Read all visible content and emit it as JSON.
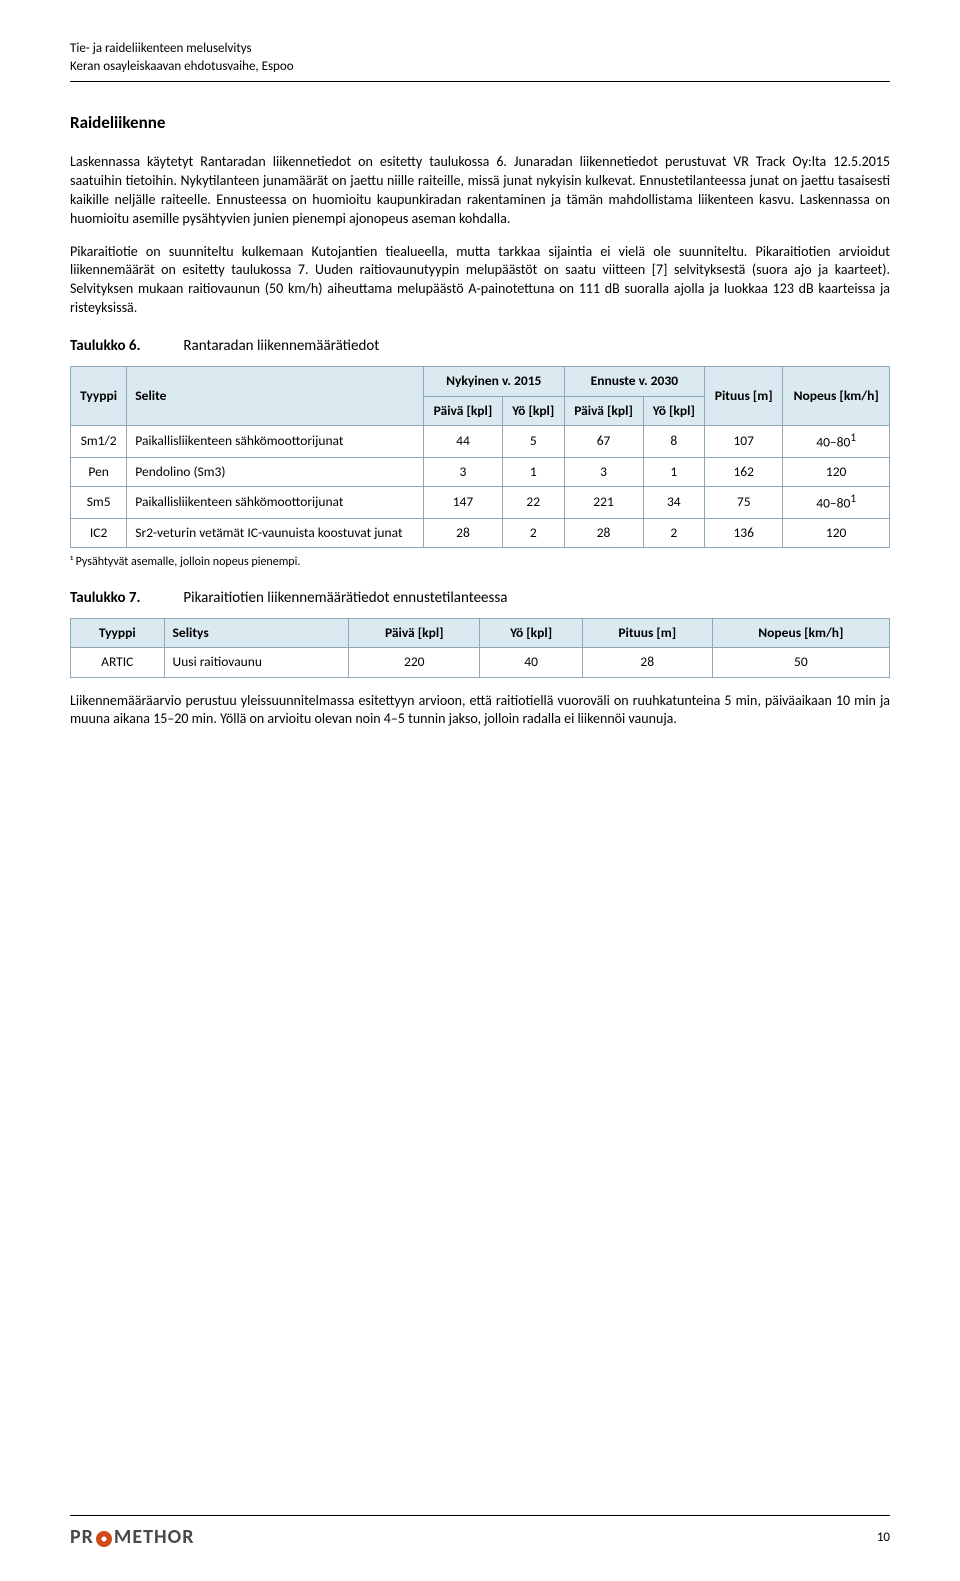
{
  "header": {
    "line1": "Tie- ja raideliikenteen meluselvitys",
    "line2": "Keran osayleiskaavan ehdotusvaihe, Espoo"
  },
  "section_title": "Raideliikenne",
  "paragraphs": {
    "p1": "Laskennassa käytetyt Rantaradan liikennetiedot on esitetty taulukossa 6. Junaradan liikennetiedot perustuvat VR Track Oy:lta 12.5.2015 saatuihin tietoihin. Nykytilanteen junamäärät on jaettu niille raiteille, missä junat nykyisin kulkevat. Ennustetilanteessa junat on jaettu tasaisesti kaikille neljälle raiteelle. Ennusteessa on huomioitu kaupunkiradan rakentaminen ja tämän mahdollistama liikenteen kasvu. Laskennassa on huomioitu asemille pysähtyvien junien pienempi ajonopeus aseman kohdalla.",
    "p2": "Pikaraitiotie on suunniteltu kulkemaan Kutojantien tiealueella, mutta tarkkaa sijaintia ei vielä ole suunniteltu. Pikaraitiotien arvioidut liikennemäärät on esitetty taulukossa 7. Uuden raitiovaunutyypin melupäästöt on saatu viitteen [7] selvityksestä (suora ajo ja kaarteet). Selvityksen mukaan raitiovaunun (50 km/h) aiheuttama melupäästö A-painotettuna on 111 dB suoralla ajolla ja luokkaa 123 dB kaarteissa ja risteyksissä."
  },
  "table6": {
    "caption_label": "Taulukko 6.",
    "caption_text": "Rantaradan liikennemäärätiedot",
    "headers": {
      "tyyppi": "Tyyppi",
      "selite": "Selite",
      "nykyinen": "Nykyinen v. 2015",
      "ennuste": "Ennuste v. 2030",
      "pituus": "Pituus [m]",
      "nopeus": "Nopeus [km/h]",
      "paiva": "Päivä [kpl]",
      "yo": "Yö [kpl]"
    },
    "rows": [
      {
        "tyyppi": "Sm1/2",
        "selite": "Paikallisliikenteen sähkömoottorijunat",
        "p1": "44",
        "y1": "5",
        "p2": "67",
        "y2": "8",
        "pit": "107",
        "nop": "40–80",
        "sup": "1"
      },
      {
        "tyyppi": "Pen",
        "selite": "Pendolino (Sm3)",
        "p1": "3",
        "y1": "1",
        "p2": "3",
        "y2": "1",
        "pit": "162",
        "nop": "120",
        "sup": ""
      },
      {
        "tyyppi": "Sm5",
        "selite": "Paikallisliikenteen sähkömoottorijunat",
        "p1": "147",
        "y1": "22",
        "p2": "221",
        "y2": "34",
        "pit": "75",
        "nop": "40–80",
        "sup": "1"
      },
      {
        "tyyppi": "IC2",
        "selite": "Sr2-veturin vetämät IC-vaunuista koostuvat junat",
        "p1": "28",
        "y1": "2",
        "p2": "28",
        "y2": "2",
        "pit": "136",
        "nop": "120",
        "sup": ""
      }
    ],
    "footnote": "¹ Pysähtyvät asemalle, jolloin nopeus pienempi."
  },
  "table7": {
    "caption_label": "Taulukko 7.",
    "caption_text": "Pikaraitiotien liikennemäärätiedot ennustetilanteessa",
    "headers": {
      "tyyppi": "Tyyppi",
      "selitys": "Selitys",
      "paiva": "Päivä [kpl]",
      "yo": "Yö [kpl]",
      "pituus": "Pituus [m]",
      "nopeus": "Nopeus [km/h]"
    },
    "row": {
      "tyyppi": "ARTIC",
      "selitys": "Uusi raitiovaunu",
      "paiva": "220",
      "yo": "40",
      "pituus": "28",
      "nopeus": "50"
    }
  },
  "paragraph_after": "Liikennemääräarvio perustuu yleissuunnitelmassa esitettyyn arvioon, että raitiotiellä vuoroväli on ruuhkatunteina 5 min, päiväaikaan 10 min ja muuna aikana 15–20 min. Yöllä on arvioitu olevan noin 4–5 tunnin jakso, jolloin radalla ei liikennöi vaunuja.",
  "footer": {
    "logo_pre": "PR",
    "logo_post": "METHOR",
    "page": "10"
  },
  "colors": {
    "header_bg": "#dbe9f0",
    "border": "#8da8b8",
    "logo_accent": "#d04a1a",
    "logo_text": "#4a4a4a"
  }
}
